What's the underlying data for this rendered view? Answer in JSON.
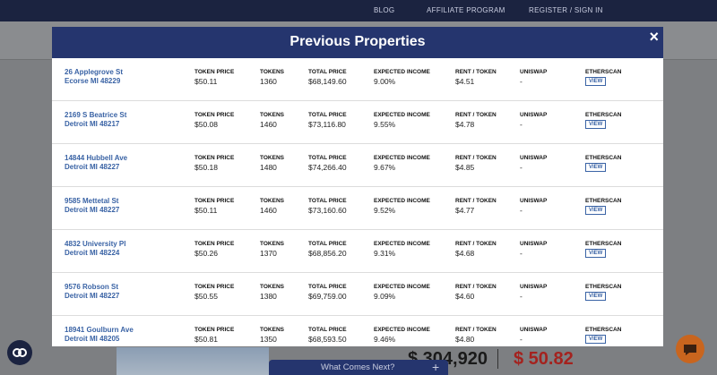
{
  "nav": {
    "links": [
      "BLOG",
      "AFFILIATE PROGRAM",
      "REGISTER / SIGN IN"
    ]
  },
  "modal": {
    "title": "Previous Properties",
    "close": "×",
    "columns": [
      "TOKEN PRICE",
      "TOKENS",
      "TOTAL PRICE",
      "EXPECTED INCOME",
      "RENT / TOKEN",
      "UNISWAP",
      "ETHERSCAN"
    ],
    "rows": [
      {
        "address": [
          "26 Applegrove St",
          "Ecorse MI 48229"
        ],
        "values": [
          "$50.11",
          "1360",
          "$68,149.60",
          "9.00%",
          "$4.51",
          "-"
        ],
        "action": "VIEW"
      },
      {
        "address": [
          "2169 S Beatrice St",
          "Detroit MI 48217"
        ],
        "values": [
          "$50.08",
          "1460",
          "$73,116.80",
          "9.55%",
          "$4.78",
          "-"
        ],
        "action": "VIEW"
      },
      {
        "address": [
          "14844 Hubbell Ave",
          "Detroit MI 48227"
        ],
        "values": [
          "$50.18",
          "1480",
          "$74,266.40",
          "9.67%",
          "$4.85",
          "-"
        ],
        "action": "VIEW"
      },
      {
        "address": [
          "9585 Mettetal St",
          "Detroit MI 48227"
        ],
        "values": [
          "$50.11",
          "1460",
          "$73,160.60",
          "9.52%",
          "$4.77",
          "-"
        ],
        "action": "VIEW"
      },
      {
        "address": [
          "4832 University Pl",
          "Detroit MI 48224"
        ],
        "values": [
          "$50.26",
          "1370",
          "$68,856.20",
          "9.31%",
          "$4.68",
          "-"
        ],
        "action": "VIEW"
      },
      {
        "address": [
          "9576 Robson St",
          "Detroit MI 48227"
        ],
        "values": [
          "$50.55",
          "1380",
          "$69,759.00",
          "9.09%",
          "$4.60",
          "-"
        ],
        "action": "VIEW"
      },
      {
        "address": [
          "18941 Goulburn Ave",
          "Detroit MI 48205"
        ],
        "values": [
          "$50.81",
          "1350",
          "$68,593.50",
          "9.46%",
          "$4.80",
          "-"
        ],
        "action": "VIEW"
      }
    ]
  },
  "background": {
    "price": "$ 304,920",
    "token_price": "$ 50.82",
    "section": "What Comes Next?",
    "expand": "+"
  }
}
